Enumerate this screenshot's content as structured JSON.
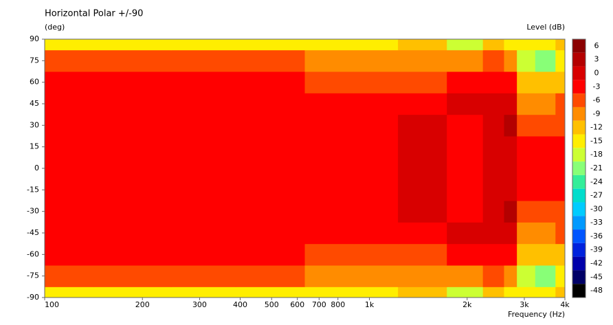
{
  "chart_data": {
    "type": "contour",
    "title": "Horizontal Polar +/-90",
    "y_label": "(deg)",
    "x_label": "Frequency  (Hz)",
    "colorbar_label": "Level  (dB)",
    "x_scale": "log",
    "x": [
      100,
      200,
      300,
      500,
      800,
      1000,
      1500,
      2000,
      2500,
      2700,
      3000,
      3500,
      4000
    ],
    "y": [
      -90,
      -75,
      -60,
      -45,
      -30,
      -15,
      0,
      15,
      30,
      45,
      60,
      75,
      90
    ],
    "z": [
      [
        -13,
        -13,
        -14,
        -14,
        -15,
        -14,
        -12,
        -16,
        -12,
        -15,
        -13,
        -14,
        -12
      ],
      [
        -5,
        -5,
        -5,
        -6,
        -7,
        -7,
        -8,
        -8,
        -6,
        -9,
        -16,
        -21,
        -15
      ],
      [
        -2,
        -2,
        -2,
        -2,
        -4,
        -4,
        -4,
        -2,
        -1,
        -2,
        -12,
        -12,
        -10
      ],
      [
        -1,
        -1,
        -1,
        -1,
        -1,
        -1,
        -1,
        0,
        1,
        1,
        -8,
        -8,
        -6
      ],
      [
        -1,
        -1,
        -1,
        -1,
        -1,
        -1,
        1,
        -1,
        2,
        4,
        -4,
        -5,
        -4
      ],
      [
        -1,
        -1,
        -1,
        -1,
        -1,
        -1,
        1,
        -1,
        1,
        2,
        -1,
        -3,
        -1
      ],
      [
        -1,
        -1,
        -1,
        -1,
        -1,
        -1,
        1,
        -1,
        1,
        1,
        -1,
        -2,
        -1
      ],
      [
        -1,
        -1,
        -1,
        -1,
        -1,
        -1,
        1,
        -1,
        1,
        2,
        -1,
        -3,
        -1
      ],
      [
        -1,
        -1,
        -1,
        -1,
        -1,
        -1,
        1,
        -1,
        2,
        4,
        -4,
        -5,
        -4
      ],
      [
        -1,
        -1,
        -1,
        -1,
        -1,
        -1,
        -1,
        0,
        1,
        1,
        -8,
        -8,
        -6
      ],
      [
        -2,
        -2,
        -2,
        -2,
        -4,
        -4,
        -4,
        -2,
        -1,
        -2,
        -12,
        -12,
        -10
      ],
      [
        -5,
        -5,
        -5,
        -6,
        -7,
        -7,
        -8,
        -8,
        -6,
        -9,
        -16,
        -21,
        -15
      ],
      [
        -13,
        -13,
        -14,
        -14,
        -15,
        -14,
        -12,
        -16,
        -12,
        -15,
        -13,
        -14,
        -12
      ]
    ],
    "xlim": [
      100,
      4000
    ],
    "ylim": [
      -90,
      90
    ],
    "xticks": [
      100,
      200,
      300,
      400,
      500,
      600,
      700,
      800,
      {
        "value": 1000,
        "label": "1k"
      },
      {
        "value": 2000,
        "label": "2k"
      },
      {
        "value": 3000,
        "label": "3k"
      },
      {
        "value": 4000,
        "label": "4k"
      }
    ],
    "yticks": [
      -90,
      -75,
      -60,
      -45,
      -30,
      -15,
      0,
      15,
      30,
      45,
      60,
      75,
      90
    ],
    "colorbar": {
      "levels": [
        6,
        3,
        0,
        -3,
        -6,
        -9,
        -12,
        -15,
        -18,
        -21,
        -24,
        -27,
        -30,
        -33,
        -36,
        -39,
        -42,
        -45,
        -48
      ],
      "colors": [
        "#8b0000",
        "#b40000",
        "#d80000",
        "#ff0000",
        "#ff4a00",
        "#ff8c00",
        "#ffc000",
        "#ffee00",
        "#ccff33",
        "#88ff77",
        "#33ee99",
        "#00ddcc",
        "#00ccff",
        "#0099ff",
        "#0055ff",
        "#0022dd",
        "#0000aa",
        "#000066",
        "#000000"
      ]
    }
  }
}
